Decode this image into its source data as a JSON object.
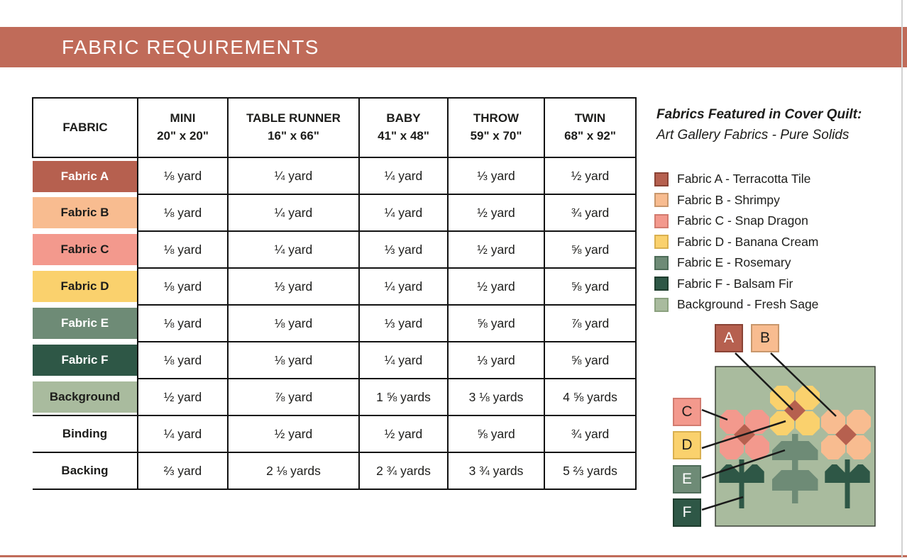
{
  "banner": {
    "title": "FABRIC REQUIREMENTS"
  },
  "colors": {
    "banner": "#c06b59",
    "border": "#121212",
    "fabricA": "#b6604f",
    "fabricB": "#f8bc90",
    "fabricC": "#f3998d",
    "fabricD": "#fad16d",
    "fabricE": "#6e8b76",
    "fabricF": "#2e5746",
    "background": "#a9bb9e"
  },
  "table": {
    "columns": [
      {
        "label": "FABRIC",
        "sublabel": ""
      },
      {
        "label": "MINI",
        "sublabel": "20\" x 20\""
      },
      {
        "label": "TABLE RUNNER",
        "sublabel": "16\" x 66\""
      },
      {
        "label": "BABY",
        "sublabel": "41\" x 48\""
      },
      {
        "label": "THROW",
        "sublabel": "59\" x 70\""
      },
      {
        "label": "TWIN",
        "sublabel": "68\" x 92\""
      }
    ],
    "rows": [
      {
        "label": "Fabric A",
        "bg": "#b6604f",
        "text": "#ffffff",
        "plain": false,
        "values": [
          "⅛ yard",
          "¼ yard",
          "¼ yard",
          "⅓ yard",
          "½ yard"
        ]
      },
      {
        "label": "Fabric B",
        "bg": "#f8bc90",
        "text": "#1d1d1b",
        "plain": false,
        "values": [
          "⅛ yard",
          "¼ yard",
          "¼ yard",
          "½ yard",
          "¾ yard"
        ]
      },
      {
        "label": "Fabric C",
        "bg": "#f3998d",
        "text": "#1d1d1b",
        "plain": false,
        "values": [
          "⅛ yard",
          "¼ yard",
          "⅓ yard",
          "½ yard",
          "⅝ yard"
        ]
      },
      {
        "label": "Fabric D",
        "bg": "#fad16d",
        "text": "#1d1d1b",
        "plain": false,
        "values": [
          "⅛ yard",
          "⅓ yard",
          "¼ yard",
          "½ yard",
          "⅝ yard"
        ]
      },
      {
        "label": "Fabric E",
        "bg": "#6e8b76",
        "text": "#ffffff",
        "plain": false,
        "values": [
          "⅛ yard",
          "⅛ yard",
          "⅓ yard",
          "⅝ yard",
          "⅞ yard"
        ]
      },
      {
        "label": "Fabric F",
        "bg": "#2e5746",
        "text": "#ffffff",
        "plain": false,
        "values": [
          "⅛ yard",
          "⅛ yard",
          "¼ yard",
          "⅓ yard",
          "⅝ yard"
        ]
      },
      {
        "label": "Background",
        "bg": "#a9bb9e",
        "text": "#1d1d1b",
        "plain": false,
        "values": [
          "½ yard",
          "⅞ yard",
          "1 ⅝ yards",
          "3 ⅛ yards",
          "4 ⅝ yards"
        ]
      },
      {
        "label": "Binding",
        "bg": "#ffffff",
        "text": "#1d1d1b",
        "plain": true,
        "values": [
          "¼ yard",
          "½ yard",
          "½ yard",
          "⅝ yard",
          "¾ yard"
        ]
      },
      {
        "label": "Backing",
        "bg": "#ffffff",
        "text": "#1d1d1b",
        "plain": true,
        "values": [
          "⅔ yard",
          "2 ⅛ yards",
          "2 ¾ yards",
          "3 ¾ yards",
          "5 ⅔ yards"
        ]
      }
    ]
  },
  "legend": {
    "title": "Fabrics Featured in Cover Quilt:",
    "subtitle": "Art Gallery Fabrics - Pure Solids",
    "items": [
      {
        "label": "Fabric A - Terracotta Tile",
        "color": "#b6604f",
        "border": "#8a4335"
      },
      {
        "label": "Fabric B - Shrimpy",
        "color": "#f8bc90",
        "border": "#c8976c"
      },
      {
        "label": "Fabric C - Snap Dragon",
        "color": "#f3998d",
        "border": "#d27b6f"
      },
      {
        "label": "Fabric D - Banana Cream",
        "color": "#fad16d",
        "border": "#d9b050"
      },
      {
        "label": "Fabric E - Rosemary",
        "color": "#6e8b76",
        "border": "#4e6c58"
      },
      {
        "label": "Fabric F - Balsam Fir",
        "color": "#2e5746",
        "border": "#1e3c2d"
      },
      {
        "label": "Background - Fresh Sage",
        "color": "#a9bb9e",
        "border": "#8ba17f"
      }
    ]
  },
  "diagram": {
    "chips": [
      {
        "letter": "A",
        "color": "#b6604f",
        "border": "#8a4335",
        "text": "#ffffff"
      },
      {
        "letter": "B",
        "color": "#f8bc90",
        "border": "#c8976c",
        "text": "#1d1d1b"
      },
      {
        "letter": "C",
        "color": "#f3998d",
        "border": "#d27b6f",
        "text": "#1d1d1b"
      },
      {
        "letter": "D",
        "color": "#fad16d",
        "border": "#d9b050",
        "text": "#1d1d1b"
      },
      {
        "letter": "E",
        "color": "#6e8b76",
        "border": "#4e6c58",
        "text": "#ffffff"
      },
      {
        "letter": "F",
        "color": "#2e5746",
        "border": "#1e3c2d",
        "text": "#ffffff"
      }
    ]
  }
}
